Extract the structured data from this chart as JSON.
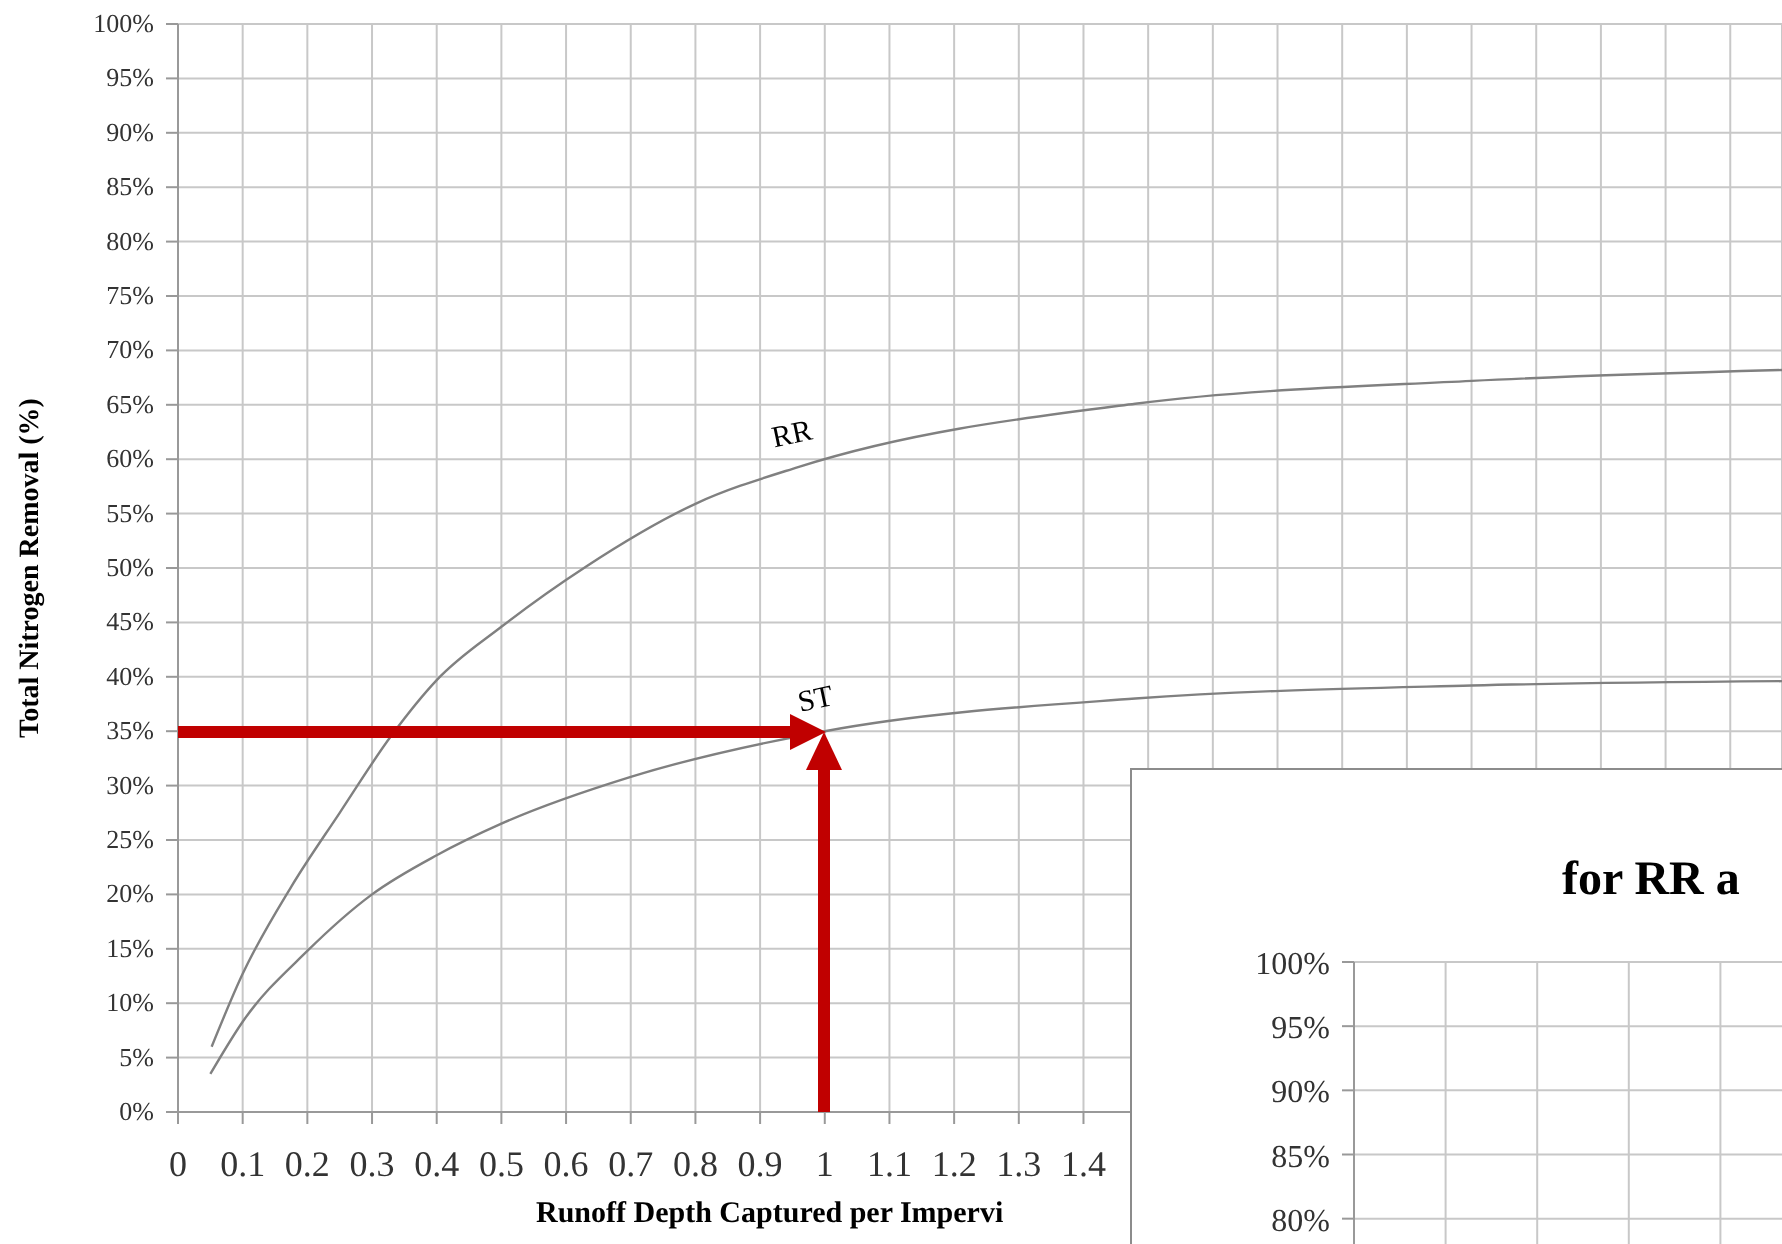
{
  "chart_data": [
    {
      "type": "line",
      "xlabel": "Runoff Depth Captured per Impervi",
      "ylabel": "Total Nitrogen Removal (%)",
      "xlim": [
        0,
        2.48
      ],
      "ylim": [
        0,
        100
      ],
      "xticks": [
        0,
        0.1,
        0.2,
        0.3,
        0.4,
        0.5,
        0.6,
        0.7,
        0.8,
        0.9,
        1,
        1.1,
        1.2,
        1.3,
        1.4,
        {
          "value": 1.5,
          "label": null
        },
        {
          "value": 1.6,
          "label": null
        },
        {
          "value": 1.7,
          "label": null
        },
        {
          "value": 1.8,
          "label": null
        },
        {
          "value": 1.9,
          "label": null
        },
        {
          "value": 2,
          "label": null
        },
        {
          "value": 2.1,
          "label": null
        },
        {
          "value": 2.2,
          "label": null
        },
        {
          "value": 2.3,
          "label": null
        },
        {
          "value": 2.4,
          "label": null
        }
      ],
      "yticks": [
        {
          "value": 0,
          "label": "0%"
        },
        {
          "value": 5,
          "label": "5%"
        },
        {
          "value": 10,
          "label": "10%"
        },
        {
          "value": 15,
          "label": "15%"
        },
        {
          "value": 20,
          "label": "20%"
        },
        {
          "value": 25,
          "label": "25%"
        },
        {
          "value": 30,
          "label": "30%"
        },
        {
          "value": 35,
          "label": "35%"
        },
        {
          "value": 40,
          "label": "40%"
        },
        {
          "value": 45,
          "label": "45%"
        },
        {
          "value": 50,
          "label": "50%"
        },
        {
          "value": 55,
          "label": "55%"
        },
        {
          "value": 60,
          "label": "60%"
        },
        {
          "value": 65,
          "label": "65%"
        },
        {
          "value": 70,
          "label": "70%"
        },
        {
          "value": 75,
          "label": "75%"
        },
        {
          "value": 80,
          "label": "80%"
        },
        {
          "value": 85,
          "label": "85%"
        },
        {
          "value": 90,
          "label": "90%"
        },
        {
          "value": 95,
          "label": "95%"
        },
        {
          "value": 100,
          "label": "100%"
        }
      ],
      "grid": true,
      "series": [
        {
          "name": "RR",
          "color": "#808080",
          "x": [
            0.052,
            0.1,
            0.175,
            0.25,
            0.33,
            0.4,
            0.5,
            0.63,
            0.8,
            0.96,
            1.48,
            2.0,
            2.48
          ],
          "values": [
            6,
            12.7,
            20.7,
            27.5,
            34.6,
            39.7,
            44.6,
            50.1,
            55.9,
            59.3,
            65.1,
            67.2,
            68.2
          ]
        },
        {
          "name": "ST",
          "color": "#808080",
          "x": [
            0.05,
            0.1,
            0.2,
            0.3,
            0.4,
            0.5,
            0.7,
            1.0,
            1.48,
            2.0,
            2.48
          ],
          "values": [
            3.5,
            8.3,
            14.8,
            20.0,
            23.6,
            26.5,
            30.8,
            35,
            38,
            39.2,
            39.6
          ]
        }
      ]
    },
    {
      "type": "line",
      "title": "for RR a",
      "categories": [
        null,
        null,
        null,
        null,
        null,
        null
      ],
      "ylim": [
        76,
        100
      ],
      "yticks": [
        {
          "value": 80,
          "label": "80%"
        },
        {
          "value": 85,
          "label": "85%"
        },
        {
          "value": 90,
          "label": "90%"
        },
        {
          "value": 95,
          "label": "95%"
        },
        {
          "value": 100,
          "label": "100%"
        }
      ],
      "grid": true
    }
  ]
}
